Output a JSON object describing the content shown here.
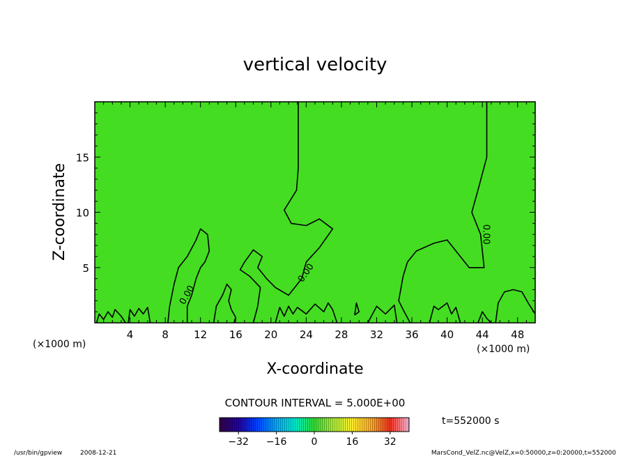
{
  "chart_data": {
    "type": "heatmap",
    "title": "vertical velocity",
    "xlabel": "X-coordinate",
    "ylabel": "Z-coordinate",
    "x_unit": "(×1000 m)",
    "x_unit_right": "(×1000 m)",
    "xlim": [
      0,
      50
    ],
    "ylim": [
      0,
      20
    ],
    "x_ticks": [
      4,
      8,
      12,
      16,
      20,
      24,
      28,
      32,
      36,
      40,
      44,
      48
    ],
    "y_ticks": [
      5,
      10,
      15
    ],
    "field_color": "#44dd22",
    "contour_interval_label": "CONTOUR INTERVAL = 5.000E+00",
    "contour_labels": [
      {
        "text": "0.00",
        "x": 10.5,
        "z": 2.5,
        "angle": -60
      },
      {
        "text": "0.00",
        "x": 24,
        "z": 4.5,
        "angle": -55
      },
      {
        "text": "0.00",
        "x": 44.4,
        "z": 8,
        "angle": 90
      }
    ],
    "contours": [
      [
        [
          23.1,
          20
        ],
        [
          23.1,
          14
        ],
        [
          22.9,
          12
        ],
        [
          21.5,
          10.2
        ],
        [
          22.3,
          9
        ],
        [
          24,
          8.8
        ],
        [
          25.5,
          9.4
        ],
        [
          27,
          8.5
        ],
        [
          25.5,
          6.8
        ],
        [
          24,
          5.5
        ],
        [
          23.5,
          4
        ],
        [
          22,
          2.5
        ],
        [
          20.5,
          3.2
        ],
        [
          19.5,
          4
        ],
        [
          18.5,
          5
        ],
        [
          19,
          6
        ],
        [
          18,
          6.6
        ],
        [
          17,
          5.5
        ],
        [
          16.5,
          4.8
        ],
        [
          17.6,
          4.2
        ],
        [
          18.8,
          3.2
        ],
        [
          18.5,
          1.5
        ],
        [
          18,
          0
        ]
      ],
      [
        [
          44.5,
          20
        ],
        [
          44.5,
          15
        ],
        [
          43.5,
          12
        ],
        [
          42.8,
          10
        ],
        [
          43.8,
          8
        ],
        [
          44.2,
          5
        ],
        [
          42.5,
          5
        ],
        [
          40,
          7.5
        ],
        [
          38.5,
          7.2
        ],
        [
          36.5,
          6.5
        ],
        [
          35.5,
          5.5
        ],
        [
          35,
          4.2
        ],
        [
          34.5,
          2
        ],
        [
          35,
          1.2
        ],
        [
          35.8,
          0
        ]
      ],
      [
        [
          8.3,
          0
        ],
        [
          8.5,
          1.5
        ],
        [
          9,
          3.5
        ],
        [
          9.5,
          5
        ],
        [
          10.5,
          6
        ],
        [
          11.5,
          7.5
        ],
        [
          12,
          8.5
        ],
        [
          12.8,
          8
        ],
        [
          13,
          6.5
        ],
        [
          12.5,
          5.5
        ],
        [
          12,
          5
        ],
        [
          11.5,
          4
        ],
        [
          11,
          2.5
        ],
        [
          10.5,
          1.5
        ],
        [
          10.5,
          0
        ]
      ],
      [
        [
          13.5,
          0
        ],
        [
          13.8,
          1.5
        ],
        [
          14.5,
          2.5
        ],
        [
          15,
          3.5
        ],
        [
          15.5,
          3
        ],
        [
          15.2,
          2
        ],
        [
          15.5,
          1.2
        ],
        [
          16,
          0.5
        ],
        [
          15.8,
          0
        ]
      ],
      [
        [
          29.5,
          0.7
        ],
        [
          29.7,
          1.8
        ],
        [
          30,
          1
        ],
        [
          29.5,
          0.7
        ]
      ],
      [
        [
          0.2,
          0
        ],
        [
          0.5,
          0.8
        ],
        [
          1,
          0.3
        ],
        [
          1.5,
          1
        ],
        [
          2,
          0.5
        ],
        [
          2.3,
          1.2
        ],
        [
          3,
          0.6
        ],
        [
          3.5,
          0
        ]
      ],
      [
        [
          3.8,
          0
        ],
        [
          4,
          1.2
        ],
        [
          4.5,
          0.6
        ],
        [
          5,
          1.3
        ],
        [
          5.5,
          0.8
        ],
        [
          6,
          1.4
        ],
        [
          6.3,
          0
        ]
      ],
      [
        [
          20.5,
          0
        ],
        [
          21,
          1.4
        ],
        [
          21.5,
          0.6
        ],
        [
          22,
          1.5
        ],
        [
          22.5,
          0.8
        ],
        [
          23,
          1.4
        ],
        [
          24,
          0.8
        ],
        [
          25,
          1.7
        ],
        [
          26,
          1
        ],
        [
          26.5,
          1.8
        ],
        [
          27,
          1.2
        ],
        [
          27.5,
          0
        ]
      ],
      [
        [
          31,
          0
        ],
        [
          32,
          1.5
        ],
        [
          33,
          0.8
        ],
        [
          34,
          1.6
        ],
        [
          34.3,
          0
        ]
      ],
      [
        [
          38,
          0
        ],
        [
          38.5,
          1.5
        ],
        [
          39,
          1.2
        ],
        [
          40,
          1.8
        ],
        [
          40.5,
          0.8
        ],
        [
          41,
          1.4
        ],
        [
          41.5,
          0
        ]
      ],
      [
        [
          43.5,
          0
        ],
        [
          44,
          1
        ],
        [
          44.5,
          0.4
        ],
        [
          45,
          0
        ]
      ],
      [
        [
          45.5,
          0
        ],
        [
          45.8,
          1.8
        ],
        [
          46.5,
          2.8
        ],
        [
          47.5,
          3
        ],
        [
          48.5,
          2.8
        ],
        [
          49.2,
          1.8
        ],
        [
          50,
          0.8
        ]
      ]
    ],
    "colorbar": {
      "ticks": [
        -32,
        -16,
        0,
        16,
        32
      ],
      "min": -40,
      "max": 40,
      "stops": [
        "#330044",
        "#2200aa",
        "#0044ff",
        "#00aaff",
        "#00eecc",
        "#33dd33",
        "#aaee33",
        "#ffee33",
        "#ffaa22",
        "#ee3322",
        "#ffbbdd"
      ]
    },
    "time_label": "t=552000 s"
  },
  "footer": {
    "program": "/usr/bin/gpview",
    "date": "2008-12-21",
    "source": "MarsCond_VelZ.nc@VelZ,x=0:50000,z=0:20000,t=552000"
  }
}
